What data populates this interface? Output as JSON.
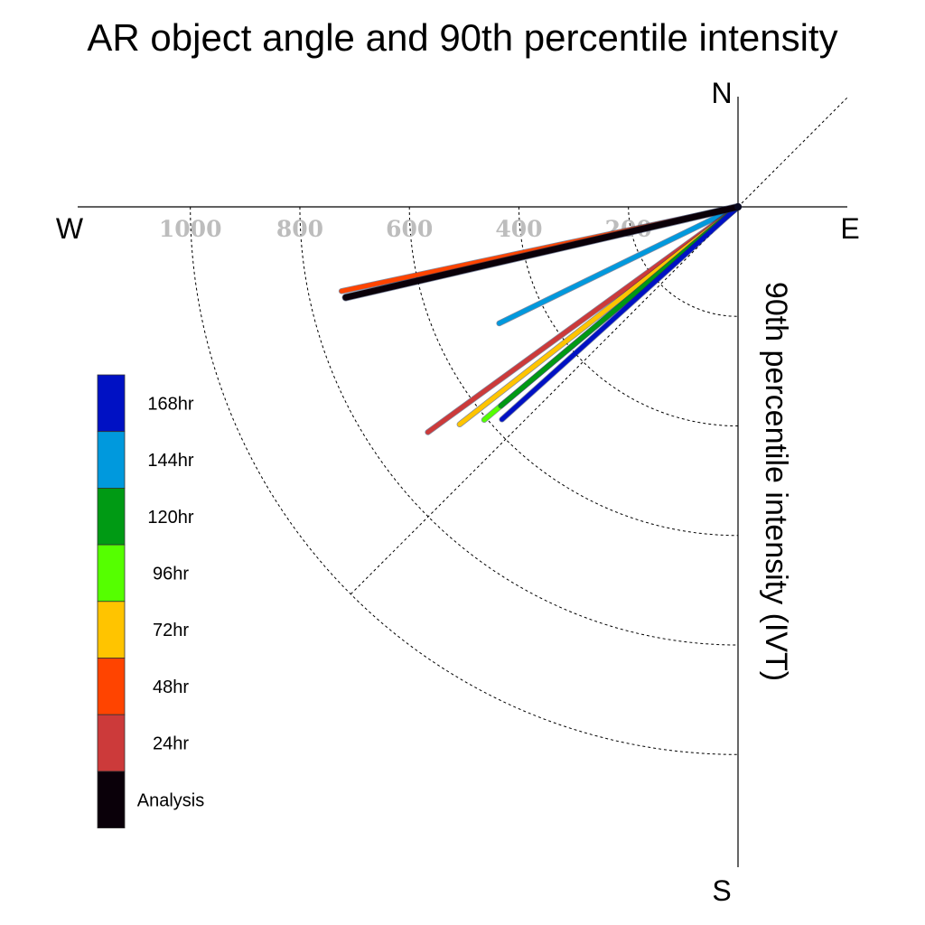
{
  "chart_data": {
    "type": "polar-line",
    "title": "AR object angle and 90th percentile intensity",
    "ylabel": "90th percentile intensity (IVT)",
    "compass": {
      "north": "N",
      "south": "S",
      "east": "E",
      "west": "W"
    },
    "radial_ticks": [
      "200",
      "400",
      "600",
      "800",
      "1000"
    ],
    "radial_tick_values": [
      200,
      400,
      600,
      800,
      1000
    ],
    "series": [
      {
        "name": "Analysis",
        "color": "#0a0009",
        "angle_deg": 13,
        "intensity": 735
      },
      {
        "name": "24hr",
        "color": "#cc3a3a",
        "angle_deg": 36,
        "intensity": 700
      },
      {
        "name": "48hr",
        "color": "#ff4400",
        "angle_deg": 12,
        "intensity": 740
      },
      {
        "name": "72hr",
        "color": "#ffc400",
        "angle_deg": 38,
        "intensity": 645
      },
      {
        "name": "96hr",
        "color": "#55ff00",
        "angle_deg": 40,
        "intensity": 605
      },
      {
        "name": "120hr",
        "color": "#009a14",
        "angle_deg": 40,
        "intensity": 565
      },
      {
        "name": "144hr",
        "color": "#0099dd",
        "angle_deg": 26,
        "intensity": 485
      },
      {
        "name": "168hr",
        "color": "#0011c4",
        "angle_deg": 42,
        "intensity": 580
      }
    ]
  }
}
